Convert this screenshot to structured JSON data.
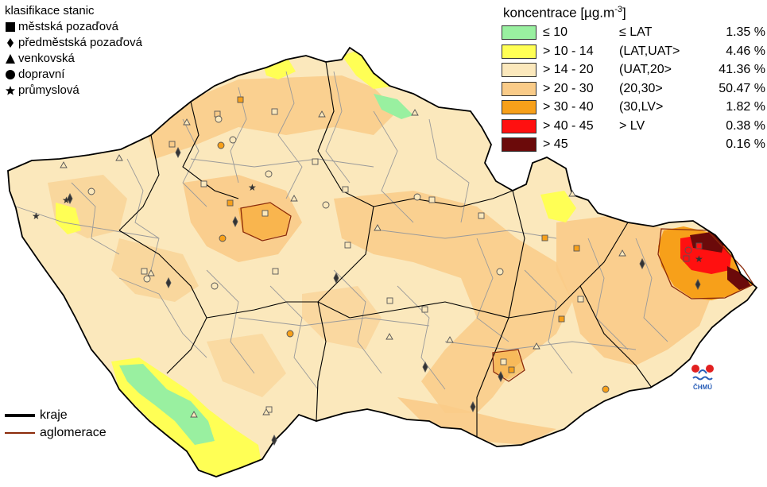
{
  "station_legend": {
    "title": "klasifikace stanic",
    "items": [
      {
        "symbol": "square-icon",
        "label": "městská pozaďová"
      },
      {
        "symbol": "diamond-icon",
        "label": "předměstská pozaďová"
      },
      {
        "symbol": "triangle-icon",
        "label": "venkovská"
      },
      {
        "symbol": "circle-icon",
        "label": "dopravní"
      },
      {
        "symbol": "star-icon",
        "label": "průmyslová"
      }
    ]
  },
  "concentration_legend": {
    "title": "koncentrace [µg.m",
    "title_sup": "-3",
    "title_end": "]",
    "rows": [
      {
        "color": "#99f0a0",
        "range": "≤ 10",
        "cls": "≤ LAT",
        "pct": "1.35 %"
      },
      {
        "color": "#ffff55",
        "range": "> 10 - 14",
        "cls": "(LAT,UAT>",
        "pct": "4.46 %"
      },
      {
        "color": "#fbe8bc",
        "range": "> 14 - 20",
        "cls": "(UAT,20>",
        "pct": "41.36 %"
      },
      {
        "color": "#f9cb88",
        "range": "> 20 - 30",
        "cls": "(20,30>",
        "pct": "50.47 %"
      },
      {
        "color": "#f7a01a",
        "range": "> 30 - 40",
        "cls": "(30,LV>",
        "pct": "1.82 %"
      },
      {
        "color": "#ff1010",
        "range": "> 40 - 45",
        "cls": "> LV",
        "pct": "0.38 %"
      },
      {
        "color": "#6b0a0a",
        "range": "> 45",
        "cls": "",
        "pct": "0.16 %"
      }
    ]
  },
  "boundary_legend": {
    "kraje": "kraje",
    "aglomerace": "aglomerace"
  },
  "logo_text": "ČHMÚ",
  "colors": {
    "kraje_line": "#000000",
    "aglomerace_line": "#8b2a0a",
    "district_line": "#999999"
  }
}
